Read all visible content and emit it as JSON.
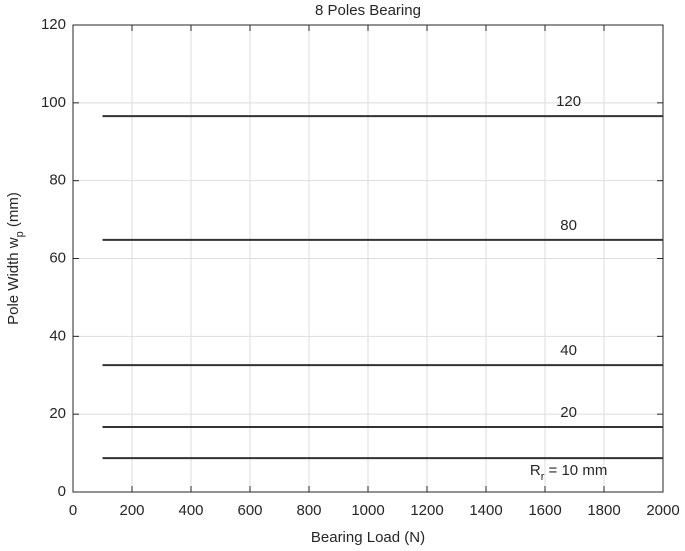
{
  "chart_data": {
    "type": "line",
    "title": "8 Poles Bearing",
    "xlabel": [
      "Bearing Load (N)"
    ],
    "ylabel": [
      "Pole Width w",
      "p",
      "  (mm)"
    ],
    "xlim": [
      0,
      2000
    ],
    "xticks": [
      0,
      200,
      400,
      600,
      800,
      1000,
      1200,
      1400,
      1600,
      1800,
      2000
    ],
    "ylim": [
      0,
      120
    ],
    "yticks": [
      0,
      20,
      40,
      60,
      80,
      100,
      120
    ],
    "grid": true,
    "series": [
      {
        "label": [
          "120"
        ],
        "color": "#333333",
        "x": [
          100,
          2000
        ],
        "values": [
          96.6,
          96.6
        ]
      },
      {
        "label": [
          "80"
        ],
        "color": "#333333",
        "x": [
          100,
          2000
        ],
        "values": [
          64.8,
          64.8
        ]
      },
      {
        "label": [
          "40"
        ],
        "color": "#333333",
        "x": [
          100,
          2000
        ],
        "values": [
          32.6,
          32.6
        ]
      },
      {
        "label": [
          "20"
        ],
        "color": "#333333",
        "x": [
          100,
          2000
        ],
        "values": [
          16.7,
          16.7
        ]
      },
      {
        "label": [
          "R",
          "r",
          " = 10 mm"
        ],
        "color": "#333333",
        "x": [
          100,
          2000
        ],
        "values": [
          8.7,
          8.7
        ]
      }
    ]
  }
}
